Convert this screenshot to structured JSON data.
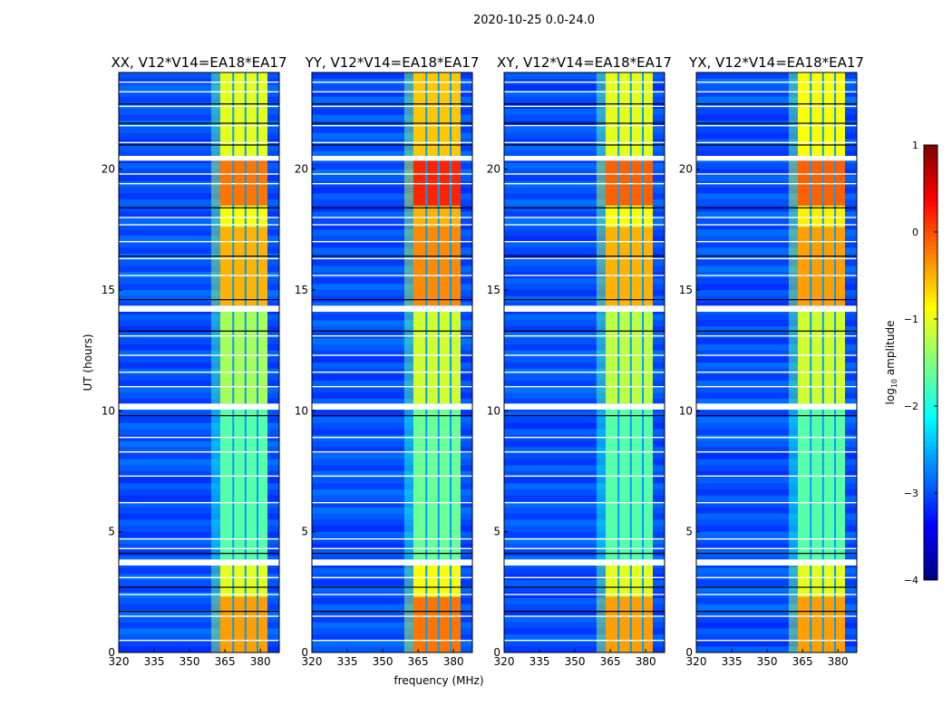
{
  "chart_data": {
    "type": "heatmap",
    "suptitle": "2020-10-25 0.0-24.0",
    "xlabel": "frequency (MHz)",
    "ylabel": "UT (hours)",
    "xlim": [
      320,
      388
    ],
    "ylim": [
      0,
      24
    ],
    "xticks": [
      "320",
      "335",
      "350",
      "365",
      "380"
    ],
    "xtick_values": [
      320,
      335,
      350,
      365,
      380
    ],
    "yticks": [
      "0",
      "5",
      "10",
      "15",
      "20"
    ],
    "ytick_values": [
      0,
      5,
      10,
      15,
      20
    ],
    "colorbar": {
      "label": "log10 amplitude",
      "label_main": "log",
      "label_sub": "10",
      "label_tail": " amplitude",
      "range": [
        -4,
        1
      ],
      "ticks": [
        "−4",
        "−3",
        "−2",
        "−1",
        "0",
        "1"
      ],
      "tick_values": [
        -4,
        -3,
        -2,
        -1,
        0,
        1
      ],
      "colormap": "jet"
    },
    "background_level": -3.0,
    "band_mhz": [
      363,
      383
    ],
    "band_gaps_mhz": [
      368.5,
      373.7,
      378.8
    ],
    "flagged_hours": [
      [
        3.6,
        3.85
      ],
      [
        10.05,
        10.3
      ],
      [
        14.1,
        14.35
      ],
      [
        20.35,
        20.55
      ]
    ],
    "thin_flag_hours": [
      0.5,
      1.5,
      2.4,
      3.1,
      4.3,
      4.7,
      6.2,
      7.3,
      8.3,
      8.9,
      11.0,
      11.6,
      12.3,
      13.1,
      15.6,
      16.3,
      17.0,
      17.7,
      18.0,
      19.4,
      19.8,
      21.1,
      21.8,
      22.6,
      23.2,
      23.6
    ],
    "panels": [
      {
        "title": "XX, V12*V14=EA18*EA17",
        "segments": [
          {
            "t0": 0,
            "t1": 2.3,
            "level": -0.4
          },
          {
            "t0": 2.3,
            "t1": 3.6,
            "level": -1.0
          },
          {
            "t0": 3.85,
            "t1": 10.05,
            "level": -1.7
          },
          {
            "t0": 10.3,
            "t1": 14.1,
            "level": -1.3
          },
          {
            "t0": 14.35,
            "t1": 17.6,
            "level": -0.5
          },
          {
            "t0": 17.6,
            "t1": 18.5,
            "level": -0.9
          },
          {
            "t0": 18.5,
            "t1": 20.35,
            "level": -0.2
          },
          {
            "t0": 20.55,
            "t1": 24,
            "level": -1.0
          }
        ]
      },
      {
        "title": "YY, V12*V14=EA18*EA17",
        "segments": [
          {
            "t0": 0,
            "t1": 2.3,
            "level": -0.2
          },
          {
            "t0": 2.3,
            "t1": 3.6,
            "level": -0.9
          },
          {
            "t0": 3.85,
            "t1": 10.05,
            "level": -1.6
          },
          {
            "t0": 10.3,
            "t1": 14.1,
            "level": -1.1
          },
          {
            "t0": 14.35,
            "t1": 17.6,
            "level": -0.3
          },
          {
            "t0": 17.6,
            "t1": 18.5,
            "level": -0.5
          },
          {
            "t0": 18.5,
            "t1": 20.35,
            "level": 0.2
          },
          {
            "t0": 20.55,
            "t1": 24,
            "level": -0.6
          }
        ]
      },
      {
        "title": "XY, V12*V14=EA18*EA17",
        "segments": [
          {
            "t0": 0,
            "t1": 2.3,
            "level": -0.4
          },
          {
            "t0": 2.3,
            "t1": 3.6,
            "level": -1.0
          },
          {
            "t0": 3.85,
            "t1": 10.05,
            "level": -1.7
          },
          {
            "t0": 10.3,
            "t1": 14.1,
            "level": -1.2
          },
          {
            "t0": 14.35,
            "t1": 17.6,
            "level": -0.5
          },
          {
            "t0": 17.6,
            "t1": 18.5,
            "level": -0.9
          },
          {
            "t0": 18.5,
            "t1": 20.35,
            "level": -0.1
          },
          {
            "t0": 20.55,
            "t1": 24,
            "level": -1.0
          }
        ]
      },
      {
        "title": "YX, V12*V14=EA18*EA17",
        "segments": [
          {
            "t0": 0,
            "t1": 2.3,
            "level": -0.4
          },
          {
            "t0": 2.3,
            "t1": 3.6,
            "level": -1.0
          },
          {
            "t0": 3.85,
            "t1": 10.05,
            "level": -1.7
          },
          {
            "t0": 10.3,
            "t1": 14.1,
            "level": -1.1
          },
          {
            "t0": 14.35,
            "t1": 17.6,
            "level": -0.4
          },
          {
            "t0": 17.6,
            "t1": 18.5,
            "level": -0.8
          },
          {
            "t0": 18.5,
            "t1": 20.35,
            "level": -0.1
          },
          {
            "t0": 20.55,
            "t1": 24,
            "level": -0.9
          }
        ]
      }
    ]
  }
}
